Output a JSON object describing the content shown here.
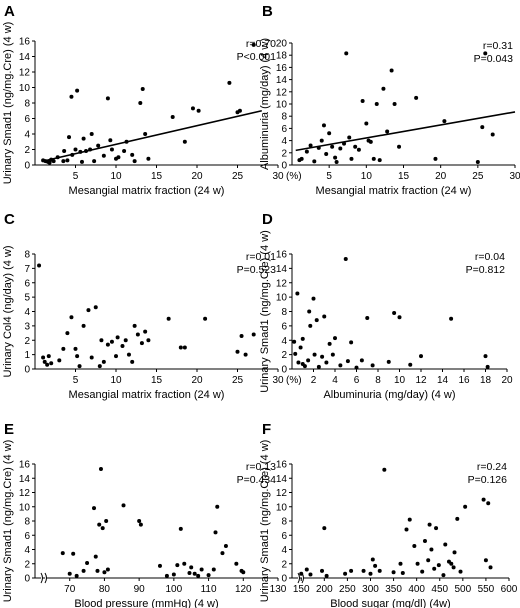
{
  "chart_data": [
    {
      "panel": "A",
      "type": "scatter",
      "xlabel": "Mesangial matrix fraction (24 w)",
      "ylabel": "Urinary Smad1 (ng/mg.Cre) (4 w)",
      "x_unit_suffix": "(%)",
      "xlim": [
        0,
        30
      ],
      "ylim": [
        0,
        16
      ],
      "xticks": [
        5,
        10,
        15,
        20,
        25,
        30
      ],
      "yticks": [
        0,
        2,
        4,
        6,
        8,
        10,
        12,
        14,
        16
      ],
      "stat_r": "r=0.70",
      "stat_p": "P<0.001",
      "trendline": [
        [
          1,
          0.5
        ],
        [
          28,
          7.0
        ]
      ],
      "points": [
        [
          1.0,
          0.6
        ],
        [
          1.3,
          0.5
        ],
        [
          1.6,
          0.4
        ],
        [
          1.8,
          0.3
        ],
        [
          2.0,
          0.7
        ],
        [
          2.3,
          0.5
        ],
        [
          2.8,
          1.0
        ],
        [
          3.5,
          0.5
        ],
        [
          3.6,
          1.8
        ],
        [
          4.0,
          0.6
        ],
        [
          4.2,
          3.6
        ],
        [
          4.5,
          8.8
        ],
        [
          4.6,
          1.3
        ],
        [
          5.0,
          2.0
        ],
        [
          5.2,
          9.6
        ],
        [
          5.6,
          1.7
        ],
        [
          5.8,
          0.4
        ],
        [
          6.0,
          3.4
        ],
        [
          6.3,
          1.8
        ],
        [
          6.8,
          2.0
        ],
        [
          7.0,
          4.0
        ],
        [
          7.3,
          0.5
        ],
        [
          7.8,
          2.5
        ],
        [
          8.5,
          1.2
        ],
        [
          9.0,
          8.6
        ],
        [
          9.3,
          3.2
        ],
        [
          9.5,
          2.0
        ],
        [
          10.0,
          0.8
        ],
        [
          10.3,
          1.0
        ],
        [
          11.0,
          1.8
        ],
        [
          11.3,
          3.0
        ],
        [
          12.0,
          1.3
        ],
        [
          12.3,
          0.5
        ],
        [
          13.0,
          8.0
        ],
        [
          13.3,
          9.8
        ],
        [
          13.6,
          4.0
        ],
        [
          14.0,
          0.8
        ],
        [
          17.0,
          6.2
        ],
        [
          18.5,
          3.0
        ],
        [
          19.5,
          7.3
        ],
        [
          20.2,
          7.0
        ],
        [
          24.0,
          10.6
        ],
        [
          25.0,
          6.8
        ],
        [
          25.3,
          7.0
        ],
        [
          27.0,
          15.5
        ]
      ]
    },
    {
      "panel": "B",
      "type": "scatter",
      "xlabel": "Mesangial matrix fraction (24 w)",
      "ylabel": "Albuminuria (mg/day) (4 w)",
      "x_unit_suffix": "(%)",
      "xlim": [
        0,
        30
      ],
      "ylim": [
        0,
        20
      ],
      "xticks": [
        5,
        10,
        15,
        20,
        25,
        30
      ],
      "yticks": [
        0,
        2,
        4,
        6,
        8,
        10,
        12,
        14,
        16,
        18,
        20
      ],
      "stat_r": "r=0.31",
      "stat_p": "P=0.043",
      "trendline": [
        [
          0.5,
          2.4
        ],
        [
          30,
          8.7
        ]
      ],
      "points": [
        [
          1.0,
          0.8
        ],
        [
          1.3,
          1.0
        ],
        [
          2.0,
          2.2
        ],
        [
          2.5,
          3.2
        ],
        [
          3.0,
          0.6
        ],
        [
          3.6,
          2.8
        ],
        [
          4.0,
          4.0
        ],
        [
          4.3,
          6.5
        ],
        [
          4.6,
          1.8
        ],
        [
          5.0,
          5.2
        ],
        [
          5.4,
          3.0
        ],
        [
          5.8,
          1.2
        ],
        [
          6.0,
          0.5
        ],
        [
          6.5,
          2.7
        ],
        [
          7.0,
          3.5
        ],
        [
          7.3,
          18.3
        ],
        [
          7.7,
          4.5
        ],
        [
          8.0,
          1.0
        ],
        [
          8.5,
          3.0
        ],
        [
          9.0,
          2.5
        ],
        [
          9.5,
          10.5
        ],
        [
          10.0,
          6.8
        ],
        [
          10.3,
          4.0
        ],
        [
          10.6,
          3.8
        ],
        [
          11.0,
          1.0
        ],
        [
          11.4,
          10.0
        ],
        [
          11.8,
          0.8
        ],
        [
          12.3,
          12.5
        ],
        [
          12.8,
          5.5
        ],
        [
          13.4,
          15.5
        ],
        [
          13.8,
          10.0
        ],
        [
          14.4,
          3.0
        ],
        [
          16.7,
          11.0
        ],
        [
          19.3,
          1.0
        ],
        [
          20.5,
          7.2
        ],
        [
          25.0,
          0.5
        ],
        [
          25.6,
          6.2
        ],
        [
          26.0,
          18.3
        ],
        [
          27.0,
          5.0
        ]
      ]
    },
    {
      "panel": "C",
      "type": "scatter",
      "xlabel": "Mesangial matrix fraction (24 w)",
      "ylabel": "Urinary Col4 (ng/day) (4 w)",
      "x_unit_suffix": "(%)",
      "xlim": [
        0,
        30
      ],
      "ylim": [
        0,
        8
      ],
      "xticks": [
        5,
        10,
        15,
        20,
        25,
        30
      ],
      "yticks": [
        0,
        1,
        2,
        3,
        4,
        5,
        6,
        7,
        8
      ],
      "stat_r": "r=0.01",
      "stat_p": "P=0.523",
      "points": [
        [
          0.5,
          7.2
        ],
        [
          1.0,
          0.8
        ],
        [
          1.2,
          0.5
        ],
        [
          1.5,
          0.3
        ],
        [
          1.7,
          0.9
        ],
        [
          2.0,
          0.4
        ],
        [
          3.0,
          0.6
        ],
        [
          3.5,
          1.4
        ],
        [
          4.0,
          2.5
        ],
        [
          4.5,
          3.6
        ],
        [
          5.0,
          1.4
        ],
        [
          5.2,
          0.9
        ],
        [
          5.5,
          0.2
        ],
        [
          6.0,
          3.0
        ],
        [
          6.6,
          4.1
        ],
        [
          7.0,
          0.8
        ],
        [
          7.5,
          4.3
        ],
        [
          8.0,
          0.2
        ],
        [
          8.2,
          2.0
        ],
        [
          8.5,
          0.5
        ],
        [
          9.0,
          1.7
        ],
        [
          9.5,
          1.9
        ],
        [
          10.0,
          0.9
        ],
        [
          10.2,
          2.2
        ],
        [
          10.8,
          1.6
        ],
        [
          11.2,
          2.0
        ],
        [
          11.6,
          1.0
        ],
        [
          12.0,
          0.5
        ],
        [
          12.3,
          3.0
        ],
        [
          12.7,
          2.4
        ],
        [
          13.2,
          1.8
        ],
        [
          13.6,
          2.6
        ],
        [
          14.0,
          2.0
        ],
        [
          16.5,
          3.5
        ],
        [
          18.0,
          1.5
        ],
        [
          18.5,
          1.5
        ],
        [
          21.0,
          3.5
        ],
        [
          25.0,
          1.2
        ],
        [
          25.5,
          2.3
        ],
        [
          26.0,
          1.0
        ],
        [
          27.0,
          2.4
        ]
      ]
    },
    {
      "panel": "D",
      "type": "scatter",
      "xlabel": "Albuminuria (mg/day) (4 w)",
      "ylabel": "Urinary Smad1 (ng/mg.Cre) (4 w)",
      "xlim": [
        0,
        20
      ],
      "ylim": [
        0,
        16
      ],
      "xticks": [
        2,
        4,
        6,
        8,
        10,
        12,
        14,
        16,
        18,
        20
      ],
      "yticks": [
        0,
        2,
        4,
        6,
        8,
        10,
        12,
        14,
        16
      ],
      "stat_r": "r=0.04",
      "stat_p": "P=0.812",
      "points": [
        [
          0.2,
          3.8
        ],
        [
          0.3,
          2.1
        ],
        [
          0.5,
          10.5
        ],
        [
          0.6,
          0.9
        ],
        [
          0.8,
          3.0
        ],
        [
          1.0,
          0.7
        ],
        [
          1.0,
          4.2
        ],
        [
          1.2,
          0.4
        ],
        [
          1.5,
          1.2
        ],
        [
          1.6,
          8.0
        ],
        [
          1.7,
          6.0
        ],
        [
          2.0,
          9.8
        ],
        [
          2.1,
          2.0
        ],
        [
          2.3,
          6.8
        ],
        [
          2.5,
          0.3
        ],
        [
          2.8,
          1.7
        ],
        [
          3.0,
          7.3
        ],
        [
          3.2,
          0.9
        ],
        [
          3.5,
          3.5
        ],
        [
          3.8,
          2.0
        ],
        [
          4.0,
          4.3
        ],
        [
          4.5,
          0.5
        ],
        [
          5.0,
          15.3
        ],
        [
          5.2,
          1.1
        ],
        [
          5.5,
          3.7
        ],
        [
          6.0,
          0.2
        ],
        [
          6.5,
          1.2
        ],
        [
          7.0,
          7.1
        ],
        [
          7.5,
          0.5
        ],
        [
          9.0,
          1.0
        ],
        [
          9.5,
          7.8
        ],
        [
          10.0,
          7.2
        ],
        [
          11.0,
          0.6
        ],
        [
          12.0,
          1.8
        ],
        [
          14.8,
          7.0
        ],
        [
          18.0,
          1.8
        ],
        [
          18.2,
          0.3
        ]
      ]
    },
    {
      "panel": "E",
      "type": "scatter",
      "xlabel": "Blood pressure (mmHg) (4 w)",
      "ylabel": "Urinary Smad1 (ng/mg.Cre) (4 w)",
      "axis_break": true,
      "xlim": [
        60,
        130
      ],
      "ylim": [
        0,
        16
      ],
      "xticks": [
        70,
        80,
        90,
        100,
        110,
        120,
        130
      ],
      "yticks": [
        0,
        2,
        4,
        6,
        8,
        10,
        12,
        14,
        16
      ],
      "stat_r": "r=0.13",
      "stat_p": "P=0.434",
      "points": [
        [
          68.0,
          3.5
        ],
        [
          70.0,
          0.6
        ],
        [
          71.0,
          3.4
        ],
        [
          72.0,
          0.3
        ],
        [
          74.0,
          1.0
        ],
        [
          75.0,
          2.1
        ],
        [
          77.0,
          9.8
        ],
        [
          77.5,
          3.0
        ],
        [
          78.0,
          1.0
        ],
        [
          78.5,
          7.5
        ],
        [
          79.0,
          15.3
        ],
        [
          79.5,
          7.0
        ],
        [
          80.0,
          0.8
        ],
        [
          80.5,
          8.0
        ],
        [
          81.0,
          1.2
        ],
        [
          85.5,
          10.2
        ],
        [
          90.0,
          8.0
        ],
        [
          90.5,
          7.5
        ],
        [
          96.0,
          1.7
        ],
        [
          98.0,
          0.3
        ],
        [
          100.0,
          0.5
        ],
        [
          101.0,
          1.8
        ],
        [
          102.0,
          6.9
        ],
        [
          103.0,
          2.0
        ],
        [
          104.5,
          0.7
        ],
        [
          105.0,
          1.5
        ],
        [
          106.0,
          0.6
        ],
        [
          107.0,
          0.3
        ],
        [
          108.0,
          1.2
        ],
        [
          110.0,
          0.4
        ],
        [
          111.5,
          1.2
        ],
        [
          112.0,
          6.4
        ],
        [
          112.5,
          10.0
        ],
        [
          114.0,
          3.5
        ],
        [
          115.0,
          4.5
        ],
        [
          118.0,
          2.0
        ],
        [
          119.5,
          1.0
        ],
        [
          120.0,
          0.8
        ]
      ]
    },
    {
      "panel": "F",
      "type": "scatter",
      "xlabel": "Blood sugar (mg/dl) (4w)",
      "ylabel": "Urinary Smad1 (ng/mg.Cre) (4 w)",
      "axis_break": true,
      "xlim": [
        130,
        600
      ],
      "ylim": [
        0,
        16
      ],
      "xticks": [
        150,
        200,
        250,
        300,
        350,
        400,
        450,
        500,
        550,
        600
      ],
      "yticks": [
        0,
        2,
        4,
        6,
        8,
        10,
        12,
        14,
        16
      ],
      "stat_r": "r=0.24",
      "stat_p": "P=0.126",
      "points": [
        [
          150,
          0.6
        ],
        [
          162,
          1.2
        ],
        [
          170,
          0.5
        ],
        [
          195,
          1.0
        ],
        [
          200,
          7.0
        ],
        [
          205,
          0.3
        ],
        [
          245,
          0.6
        ],
        [
          258,
          1.0
        ],
        [
          285,
          1.0
        ],
        [
          300,
          0.6
        ],
        [
          305,
          2.6
        ],
        [
          310,
          1.7
        ],
        [
          320,
          1.0
        ],
        [
          330,
          15.2
        ],
        [
          350,
          0.8
        ],
        [
          365,
          2.0
        ],
        [
          370,
          0.7
        ],
        [
          378,
          6.8
        ],
        [
          385,
          8.2
        ],
        [
          395,
          4.5
        ],
        [
          402,
          2.0
        ],
        [
          412,
          0.9
        ],
        [
          418,
          5.2
        ],
        [
          425,
          2.5
        ],
        [
          428,
          7.5
        ],
        [
          432,
          4.0
        ],
        [
          438,
          1.3
        ],
        [
          442,
          7.0
        ],
        [
          448,
          1.8
        ],
        [
          458,
          0.4
        ],
        [
          462,
          4.7
        ],
        [
          470,
          2.3
        ],
        [
          475,
          2.0
        ],
        [
          480,
          1.5
        ],
        [
          482,
          3.6
        ],
        [
          488,
          8.3
        ],
        [
          495,
          0.9
        ],
        [
          505,
          10.0
        ],
        [
          545,
          11.0
        ],
        [
          550,
          2.5
        ],
        [
          555,
          10.5
        ],
        [
          560,
          1.5
        ]
      ]
    }
  ]
}
